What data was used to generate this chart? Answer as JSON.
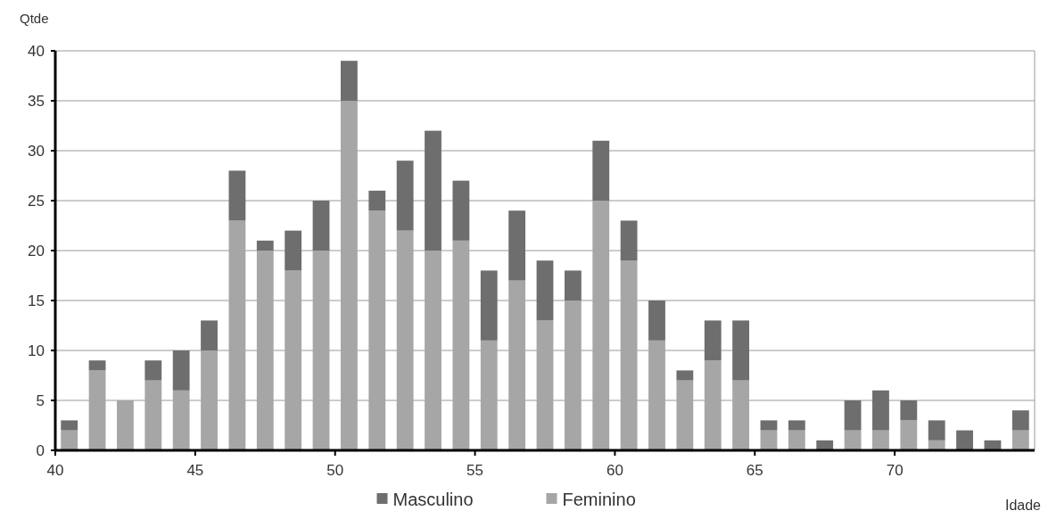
{
  "chart_data": {
    "type": "bar",
    "stacked": true,
    "xlabel": "Idade",
    "ylabel": "Qtde",
    "x": [
      40.5,
      41.5,
      42.5,
      43.5,
      44.5,
      45.5,
      46.5,
      47.5,
      48.5,
      49.5,
      50.5,
      51.5,
      52.5,
      53.5,
      54.5,
      55.5,
      56.5,
      57.5,
      58.5,
      59.5,
      60.5,
      61.5,
      62.5,
      63.5,
      64.5,
      65.5,
      66.5,
      67.5,
      68.5,
      69.5,
      70.5,
      71.5,
      72.5,
      73.5,
      74.5
    ],
    "series": [
      {
        "name": "Feminino",
        "color": "#a6a6a6",
        "values": [
          2,
          8,
          5,
          7,
          6,
          10,
          23,
          20,
          18,
          20,
          35,
          24,
          22,
          20,
          21,
          11,
          17,
          13,
          15,
          25,
          19,
          11,
          7,
          9,
          7,
          2,
          2,
          0,
          2,
          2,
          3,
          1,
          0,
          0,
          2
        ]
      },
      {
        "name": "Masculino",
        "color": "#6e6e6e",
        "values": [
          1,
          1,
          0,
          2,
          4,
          3,
          5,
          1,
          4,
          5,
          4,
          2,
          7,
          12,
          6,
          7,
          7,
          6,
          3,
          6,
          4,
          4,
          1,
          4,
          6,
          1,
          1,
          1,
          3,
          4,
          2,
          2,
          2,
          1,
          2
        ]
      }
    ],
    "xlim": [
      40,
      75
    ],
    "xticks": [
      40,
      45,
      50,
      55,
      60,
      65,
      70
    ],
    "ylim": [
      0,
      40
    ],
    "yticks": [
      0,
      5,
      10,
      15,
      20,
      25,
      30,
      35,
      40
    ],
    "grid": "y",
    "legend": "bottom"
  }
}
